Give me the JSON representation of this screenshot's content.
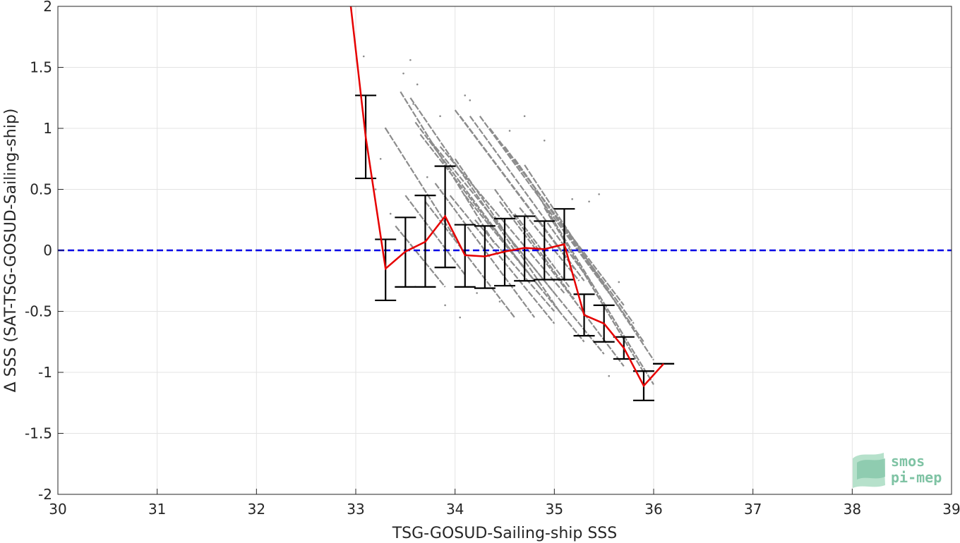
{
  "chart_data": {
    "type": "scatter",
    "xlabel": "TSG-GOSUD-Sailing-ship SSS",
    "ylabel": "Δ SSS (SAT-TSG-GOSUD-Sailing-ship)",
    "xlim": [
      30,
      39
    ],
    "ylim": [
      -2,
      2
    ],
    "x_ticks": [
      30,
      31,
      32,
      33,
      34,
      35,
      36,
      37,
      38,
      39
    ],
    "y_ticks": [
      -2,
      -1.5,
      -1,
      -0.5,
      0,
      0.5,
      1,
      1.5,
      2
    ],
    "y_tick_labels": [
      "-2",
      "-1.5",
      "-1",
      "-0.5",
      "0",
      "0.5",
      "1",
      "1.5",
      "2"
    ],
    "grid": true,
    "zero_line": {
      "y": 0,
      "style": "dashed",
      "color": "#0000e6"
    },
    "scatter_color": "#8c8c8c",
    "mean_line_color": "#e60000",
    "errorbar_color": "#000000",
    "mean_line": {
      "x": [
        32.95,
        33.1,
        33.3,
        33.5,
        33.7,
        33.9,
        34.1,
        34.3,
        34.5,
        34.7,
        34.9,
        35.1,
        35.3,
        35.5,
        35.7,
        35.9,
        36.1
      ],
      "y": [
        2.0,
        0.93,
        -0.15,
        -0.01,
        0.07,
        0.28,
        -0.04,
        -0.05,
        -0.01,
        0.02,
        0.01,
        0.05,
        -0.53,
        -0.6,
        -0.8,
        -1.11,
        -0.93
      ]
    },
    "errorbars": [
      {
        "x": 33.1,
        "low": 0.59,
        "high": 1.27
      },
      {
        "x": 33.3,
        "low": -0.41,
        "high": 0.09
      },
      {
        "x": 33.5,
        "low": -0.3,
        "high": 0.27
      },
      {
        "x": 33.7,
        "low": -0.3,
        "high": 0.45
      },
      {
        "x": 33.9,
        "low": -0.14,
        "high": 0.69
      },
      {
        "x": 34.1,
        "low": -0.3,
        "high": 0.21
      },
      {
        "x": 34.3,
        "low": -0.31,
        "high": 0.2
      },
      {
        "x": 34.5,
        "low": -0.29,
        "high": 0.26
      },
      {
        "x": 34.7,
        "low": -0.25,
        "high": 0.28
      },
      {
        "x": 34.9,
        "low": -0.24,
        "high": 0.24
      },
      {
        "x": 35.1,
        "low": -0.24,
        "high": 0.34
      },
      {
        "x": 35.3,
        "low": -0.7,
        "high": -0.36
      },
      {
        "x": 35.5,
        "low": -0.75,
        "high": -0.45
      },
      {
        "x": 35.7,
        "low": -0.89,
        "high": -0.71
      },
      {
        "x": 35.9,
        "low": -1.23,
        "high": -0.99
      },
      {
        "x": 36.1,
        "low": -0.93,
        "high": -0.93
      }
    ],
    "scatter_tracks": [
      {
        "x0": 33.3,
        "y0": 1.0,
        "x1": 34.0,
        "y1": 0.1
      },
      {
        "x0": 33.45,
        "y0": 1.3,
        "x1": 34.4,
        "y1": 0.05
      },
      {
        "x0": 33.55,
        "y0": 1.25,
        "x1": 34.6,
        "y1": 0.0
      },
      {
        "x0": 33.6,
        "y0": 1.05,
        "x1": 34.7,
        "y1": -0.15
      },
      {
        "x0": 33.65,
        "y0": 0.95,
        "x1": 34.85,
        "y1": -0.3
      },
      {
        "x0": 33.75,
        "y0": 0.9,
        "x1": 35.0,
        "y1": -0.35
      },
      {
        "x0": 33.85,
        "y0": 0.85,
        "x1": 35.1,
        "y1": -0.35
      },
      {
        "x0": 34.0,
        "y0": 1.15,
        "x1": 35.2,
        "y1": -0.15
      },
      {
        "x0": 34.05,
        "y0": 1.1,
        "x1": 35.3,
        "y1": -0.25
      },
      {
        "x0": 34.15,
        "y0": 1.1,
        "x1": 35.4,
        "y1": -0.3
      },
      {
        "x0": 34.25,
        "y0": 1.1,
        "x1": 35.55,
        "y1": -0.35
      },
      {
        "x0": 34.35,
        "y0": 1.0,
        "x1": 35.7,
        "y1": -0.45
      },
      {
        "x0": 34.5,
        "y0": 0.85,
        "x1": 35.8,
        "y1": -0.6
      },
      {
        "x0": 34.6,
        "y0": 0.75,
        "x1": 35.9,
        "y1": -0.75
      },
      {
        "x0": 34.7,
        "y0": 0.7,
        "x1": 36.0,
        "y1": -0.9
      },
      {
        "x0": 34.8,
        "y0": 0.5,
        "x1": 36.0,
        "y1": -1.1
      },
      {
        "x0": 34.9,
        "y0": 0.35,
        "x1": 35.9,
        "y1": -1.0
      },
      {
        "x0": 33.7,
        "y0": 0.4,
        "x1": 34.6,
        "y1": -0.55
      },
      {
        "x0": 33.8,
        "y0": 0.55,
        "x1": 34.8,
        "y1": -0.55
      },
      {
        "x0": 33.95,
        "y0": 0.45,
        "x1": 35.0,
        "y1": -0.6
      },
      {
        "x0": 34.1,
        "y0": 0.45,
        "x1": 35.3,
        "y1": -0.75
      },
      {
        "x0": 34.3,
        "y0": 0.35,
        "x1": 35.5,
        "y1": -0.85
      },
      {
        "x0": 34.45,
        "y0": 0.4,
        "x1": 35.7,
        "y1": -0.95
      },
      {
        "x0": 33.4,
        "y0": 0.2,
        "x1": 33.9,
        "y1": -0.3
      },
      {
        "x0": 33.5,
        "y0": 0.45,
        "x1": 34.1,
        "y1": -0.2
      },
      {
        "x0": 34.2,
        "y0": 0.25,
        "x1": 35.0,
        "y1": -0.5
      },
      {
        "x0": 34.6,
        "y0": 0.3,
        "x1": 35.15,
        "y1": -0.3
      },
      {
        "x0": 34.65,
        "y0": 0.35,
        "x1": 35.25,
        "y1": -0.25
      },
      {
        "x0": 34.4,
        "y0": 0.5,
        "x1": 35.2,
        "y1": -0.4
      },
      {
        "x0": 34.0,
        "y0": 0.75,
        "x1": 35.05,
        "y1": -0.5
      }
    ],
    "scatter_points": [
      [
        33.08,
        1.59
      ],
      [
        33.55,
        1.56
      ],
      [
        33.62,
        1.36
      ],
      [
        34.1,
        1.27
      ],
      [
        34.7,
        1.1
      ],
      [
        33.3,
        1.0
      ],
      [
        33.48,
        1.45
      ],
      [
        35.45,
        0.46
      ],
      [
        35.65,
        -0.26
      ],
      [
        35.55,
        -1.03
      ],
      [
        33.2,
        0.5
      ],
      [
        34.15,
        1.23
      ],
      [
        33.9,
        -0.45
      ],
      [
        34.05,
        -0.55
      ],
      [
        35.35,
        0.4
      ],
      [
        33.25,
        0.75
      ],
      [
        34.9,
        0.9
      ],
      [
        33.85,
        1.1
      ],
      [
        33.58,
        1.2
      ],
      [
        34.22,
        -0.35
      ],
      [
        35.18,
        0.42
      ],
      [
        34.45,
        -0.42
      ],
      [
        34.55,
        0.98
      ],
      [
        33.35,
        0.3
      ],
      [
        33.72,
        0.6
      ]
    ]
  },
  "logo": {
    "line1": "smos",
    "line2": "pi-mep"
  }
}
